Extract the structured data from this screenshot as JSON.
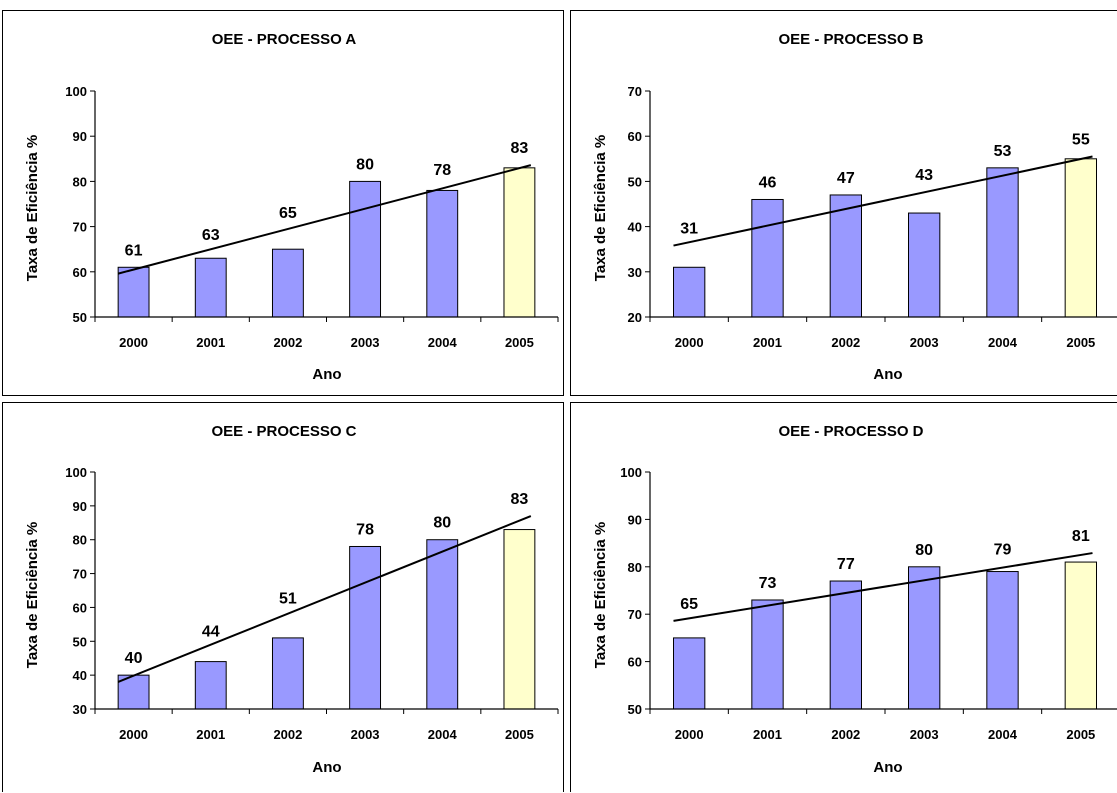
{
  "chart_data": [
    {
      "type": "bar",
      "title": "OEE - PROCESSO A",
      "xlabel": "Ano",
      "ylabel": "Taxa de Eficiência %",
      "categories": [
        "2000",
        "2001",
        "2002",
        "2003",
        "2004",
        "2005"
      ],
      "values": [
        61,
        63,
        65,
        80,
        78,
        83
      ],
      "ylim": [
        50,
        100
      ],
      "yticks": [
        50,
        60,
        70,
        80,
        90,
        100
      ],
      "trendline": [
        59.6,
        83.6
      ],
      "colors": {
        "bar": "#9999ff",
        "highlight": "#ffffcc"
      },
      "grid": false
    },
    {
      "type": "bar",
      "title": "OEE - PROCESSO B",
      "xlabel": "Ano",
      "ylabel": "Taxa de Eficiência %",
      "categories": [
        "2000",
        "2001",
        "2002",
        "2003",
        "2004",
        "2005"
      ],
      "values": [
        31,
        46,
        47,
        43,
        53,
        55
      ],
      "ylim": [
        20,
        70
      ],
      "yticks": [
        20,
        30,
        40,
        50,
        60,
        70
      ],
      "trendline": [
        35.8,
        55.5
      ],
      "colors": {
        "bar": "#9999ff",
        "highlight": "#ffffcc"
      },
      "grid": false
    },
    {
      "type": "bar",
      "title": "OEE - PROCESSO C",
      "xlabel": "Ano",
      "ylabel": "Taxa de Eficiência %",
      "categories": [
        "2000",
        "2001",
        "2002",
        "2003",
        "2004",
        "2005"
      ],
      "values": [
        40,
        44,
        51,
        78,
        80,
        83
      ],
      "ylim": [
        30,
        100
      ],
      "yticks": [
        30,
        40,
        50,
        60,
        70,
        80,
        90,
        100
      ],
      "trendline": [
        38,
        87
      ],
      "colors": {
        "bar": "#9999ff",
        "highlight": "#ffffcc"
      },
      "grid": false
    },
    {
      "type": "bar",
      "title": "OEE - PROCESSO D",
      "xlabel": "Ano",
      "ylabel": "Taxa de Eficiência %",
      "categories": [
        "2000",
        "2001",
        "2002",
        "2003",
        "2004",
        "2005"
      ],
      "values": [
        65,
        73,
        77,
        80,
        79,
        81
      ],
      "ylim": [
        50,
        100
      ],
      "yticks": [
        50,
        60,
        70,
        80,
        90,
        100
      ],
      "trendline": [
        68.6,
        82.9
      ],
      "colors": {
        "bar": "#9999ff",
        "highlight": "#ffffcc"
      },
      "grid": false
    }
  ]
}
